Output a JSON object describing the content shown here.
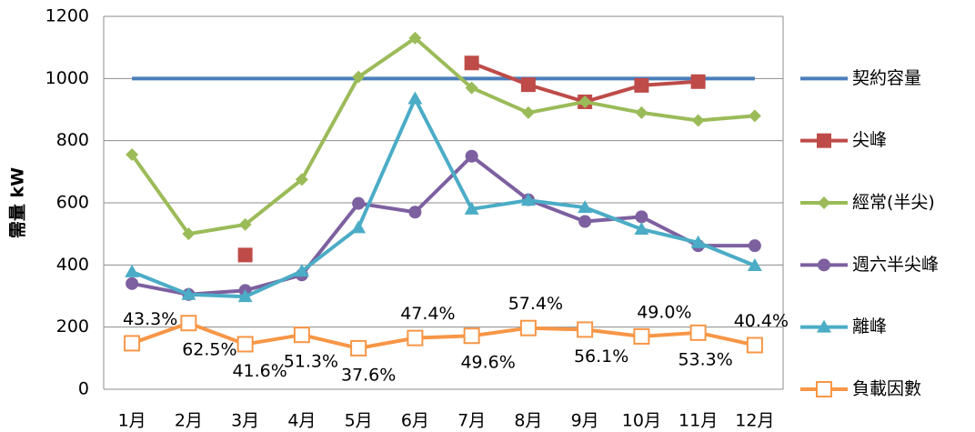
{
  "chart_data": {
    "type": "line",
    "y_label": "需量 kW",
    "categories": [
      "1月",
      "2月",
      "3月",
      "4月",
      "5月",
      "6月",
      "7月",
      "8月",
      "9月",
      "10月",
      "11月",
      "12月"
    ],
    "ylim": [
      0,
      1200
    ],
    "yticks": [
      0,
      200,
      400,
      600,
      800,
      1000,
      1200
    ],
    "grid": true,
    "series": [
      {
        "name": "契約容量",
        "color": "#4a7ebb",
        "marker": "none",
        "values": [
          1000,
          1000,
          1000,
          1000,
          1000,
          1000,
          1000,
          1000,
          1000,
          1000,
          1000,
          1000
        ]
      },
      {
        "name": "尖峰",
        "color": "#be4b48",
        "marker": "square",
        "values": [
          null,
          null,
          432,
          null,
          null,
          null,
          1050,
          980,
          925,
          978,
          990,
          null
        ]
      },
      {
        "name": "經常(半尖)",
        "color": "#9bbb59",
        "marker": "diamond",
        "values": [
          755,
          500,
          530,
          675,
          1005,
          1130,
          970,
          890,
          925,
          890,
          865,
          880
        ]
      },
      {
        "name": "週六半尖峰",
        "color": "#7d60a0",
        "marker": "circle",
        "values": [
          340,
          305,
          318,
          368,
          598,
          570,
          750,
          610,
          540,
          555,
          462,
          462
        ]
      },
      {
        "name": "離峰",
        "color": "#4bacc6",
        "marker": "triangle",
        "values": [
          378,
          305,
          298,
          380,
          520,
          935,
          580,
          608,
          585,
          515,
          472,
          398
        ]
      },
      {
        "name": "負載因數",
        "color": "#f79646",
        "marker": "hollow-square",
        "values": [
          148,
          213,
          145,
          175,
          132,
          165,
          172,
          197,
          192,
          170,
          182,
          142
        ],
        "point_labels": [
          "43.3%",
          "62.5%",
          "41.6%",
          "51.3%",
          "37.6%",
          "47.4%",
          "49.6%",
          "57.4%",
          "56.1%",
          "49.0%",
          "53.3%",
          "40.4%"
        ]
      }
    ]
  }
}
